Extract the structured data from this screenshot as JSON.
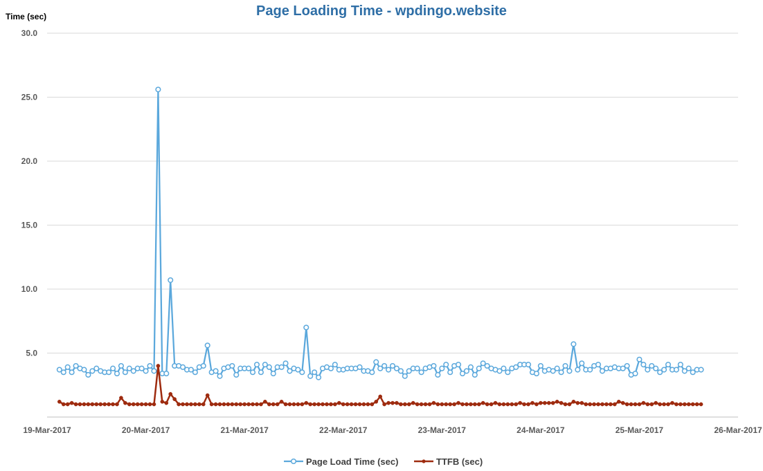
{
  "chart_data": {
    "type": "line",
    "title": "Page Loading Time - wpdingo.website",
    "ylabel": "Time (sec)",
    "xlabel": "",
    "ylim": [
      0,
      30
    ],
    "xlim": [
      "19-Mar-2017",
      "26-Mar-2017"
    ],
    "y_ticks": [
      "30.0",
      "25.0",
      "20.0",
      "15.0",
      "10.0",
      "5.0"
    ],
    "x_ticks": [
      "19-Mar-2017",
      "20-Mar-2017",
      "21-Mar-2017",
      "22-Mar-2017",
      "23-Mar-2017",
      "24-Mar-2017",
      "25-Mar-2017",
      "26-Mar-2017"
    ],
    "grid": true,
    "legend_position": "bottom",
    "sample_interval_hours": 1,
    "series": [
      {
        "name": "Page Load Time (sec)",
        "color": "#5ba8dc",
        "marker": "open-circle",
        "start": "19-Mar-2017 00:00",
        "values": [
          3.7,
          3.5,
          3.9,
          3.5,
          4.0,
          3.8,
          3.7,
          3.3,
          3.6,
          3.8,
          3.6,
          3.5,
          3.5,
          3.8,
          3.4,
          4.0,
          3.5,
          3.8,
          3.6,
          3.8,
          3.8,
          3.6,
          4.0,
          3.6,
          25.6,
          3.4,
          3.4,
          10.7,
          4.0,
          4.0,
          3.9,
          3.7,
          3.7,
          3.5,
          3.9,
          4.0,
          5.6,
          3.5,
          3.6,
          3.2,
          3.8,
          3.9,
          4.0,
          3.3,
          3.8,
          3.8,
          3.8,
          3.5,
          4.1,
          3.5,
          4.1,
          3.9,
          3.4,
          3.9,
          3.9,
          4.2,
          3.6,
          3.8,
          3.7,
          3.5,
          7.0,
          3.2,
          3.5,
          3.1,
          3.8,
          3.9,
          3.8,
          4.1,
          3.7,
          3.7,
          3.8,
          3.8,
          3.8,
          3.9,
          3.6,
          3.6,
          3.5,
          4.3,
          3.8,
          4.0,
          3.7,
          4.0,
          3.8,
          3.6,
          3.2,
          3.6,
          3.8,
          3.8,
          3.5,
          3.8,
          3.9,
          4.0,
          3.3,
          3.8,
          4.1,
          3.5,
          4.0,
          4.1,
          3.4,
          3.6,
          3.9,
          3.3,
          3.8,
          4.2,
          4.0,
          3.8,
          3.7,
          3.6,
          3.8,
          3.5,
          3.8,
          3.9,
          4.1,
          4.1,
          4.1,
          3.5,
          3.4,
          4.0,
          3.6,
          3.7,
          3.6,
          3.8,
          3.5,
          4.0,
          3.6,
          5.7,
          3.7,
          4.2,
          3.7,
          3.7,
          4.0,
          4.1,
          3.6,
          3.8,
          3.8,
          3.9,
          3.8,
          3.8,
          4.0,
          3.3,
          3.4,
          4.5,
          4.1,
          3.7,
          4.0,
          3.8,
          3.5,
          3.7,
          4.1,
          3.7,
          3.7,
          4.1,
          3.6,
          3.8,
          3.5,
          3.7,
          3.7
        ]
      },
      {
        "name": "TTFB (sec)",
        "color": "#9e2b0f",
        "marker": "filled-circle",
        "start": "19-Mar-2017 00:00",
        "values": [
          1.2,
          1.0,
          1.0,
          1.1,
          1.0,
          1.0,
          1.0,
          1.0,
          1.0,
          1.0,
          1.0,
          1.0,
          1.0,
          1.0,
          1.0,
          1.5,
          1.1,
          1.0,
          1.0,
          1.0,
          1.0,
          1.0,
          1.0,
          1.0,
          4.0,
          1.2,
          1.1,
          1.8,
          1.4,
          1.0,
          1.0,
          1.0,
          1.0,
          1.0,
          1.0,
          1.0,
          1.7,
          1.0,
          1.0,
          1.0,
          1.0,
          1.0,
          1.0,
          1.0,
          1.0,
          1.0,
          1.0,
          1.0,
          1.0,
          1.0,
          1.2,
          1.0,
          1.0,
          1.0,
          1.2,
          1.0,
          1.0,
          1.0,
          1.0,
          1.0,
          1.1,
          1.0,
          1.0,
          1.0,
          1.0,
          1.0,
          1.0,
          1.0,
          1.1,
          1.0,
          1.0,
          1.0,
          1.0,
          1.0,
          1.0,
          1.0,
          1.0,
          1.2,
          1.6,
          1.0,
          1.1,
          1.1,
          1.1,
          1.0,
          1.0,
          1.0,
          1.1,
          1.0,
          1.0,
          1.0,
          1.0,
          1.1,
          1.0,
          1.0,
          1.0,
          1.0,
          1.0,
          1.1,
          1.0,
          1.0,
          1.0,
          1.0,
          1.0,
          1.1,
          1.0,
          1.0,
          1.1,
          1.0,
          1.0,
          1.0,
          1.0,
          1.0,
          1.1,
          1.0,
          1.0,
          1.1,
          1.0,
          1.1,
          1.1,
          1.1,
          1.1,
          1.2,
          1.1,
          1.0,
          1.0,
          1.2,
          1.1,
          1.1,
          1.0,
          1.0,
          1.0,
          1.0,
          1.0,
          1.0,
          1.0,
          1.0,
          1.2,
          1.1,
          1.0,
          1.0,
          1.0,
          1.0,
          1.1,
          1.0,
          1.0,
          1.1,
          1.0,
          1.0,
          1.0,
          1.1,
          1.0,
          1.0,
          1.0,
          1.0,
          1.0,
          1.0,
          1.0
        ]
      }
    ]
  }
}
